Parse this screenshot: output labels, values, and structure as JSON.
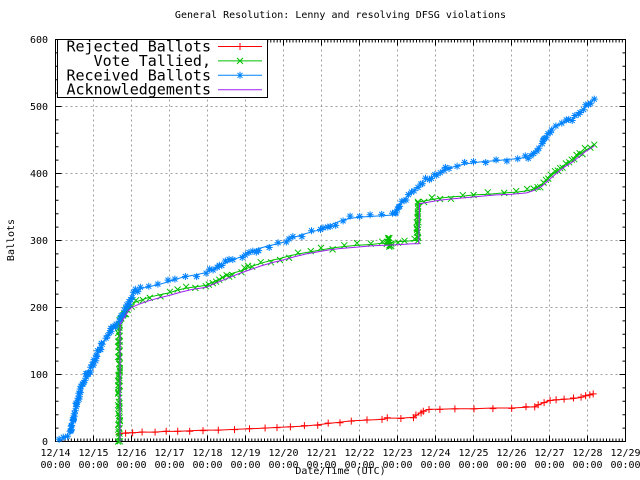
{
  "chart_data": {
    "type": "line",
    "title": "General Resolution: Lenny and resolving DFSG violations",
    "xlabel": "Date/Time (UTC)",
    "ylabel": "Ballots",
    "ylim": [
      0,
      600
    ],
    "y_ticks": [
      0,
      100,
      200,
      300,
      400,
      500,
      600
    ],
    "x_ticks": [
      {
        "date": "12/14",
        "time": "00:00"
      },
      {
        "date": "12/15",
        "time": "00:00"
      },
      {
        "date": "12/16",
        "time": "00:00"
      },
      {
        "date": "12/17",
        "time": "00:00"
      },
      {
        "date": "12/18",
        "time": "00:00"
      },
      {
        "date": "12/19",
        "time": "00:00"
      },
      {
        "date": "12/20",
        "time": "00:00"
      },
      {
        "date": "12/21",
        "time": "00:00"
      },
      {
        "date": "12/22",
        "time": "00:00"
      },
      {
        "date": "12/23",
        "time": "00:00"
      },
      {
        "date": "12/24",
        "time": "00:00"
      },
      {
        "date": "12/25",
        "time": "00:00"
      },
      {
        "date": "12/26",
        "time": "00:00"
      },
      {
        "date": "12/27",
        "time": "00:00"
      },
      {
        "date": "12/28",
        "time": "00:00"
      },
      {
        "date": "12/29",
        "time": "00:00"
      }
    ],
    "grid": true,
    "grid_color": "#a0a0a0",
    "legend_position": "top-left",
    "x_unit": "days_since_12_14_00_00",
    "series": [
      {
        "name": "Rejected Ballots",
        "color": "#ff0000",
        "marker": "plus",
        "points": [
          [
            1.7,
            12
          ],
          [
            1.85,
            13
          ],
          [
            2.05,
            13
          ],
          [
            2.3,
            14
          ],
          [
            2.6,
            14
          ],
          [
            2.9,
            15
          ],
          [
            3.2,
            15
          ],
          [
            3.55,
            16
          ],
          [
            3.9,
            17
          ],
          [
            4.3,
            17
          ],
          [
            4.7,
            18
          ],
          [
            5.1,
            19
          ],
          [
            5.5,
            20
          ],
          [
            5.85,
            21
          ],
          [
            6.2,
            22
          ],
          [
            6.55,
            23
          ],
          [
            6.9,
            25
          ],
          [
            7.2,
            27
          ],
          [
            7.5,
            29
          ],
          [
            7.8,
            31
          ],
          [
            8.2,
            32
          ],
          [
            8.6,
            33
          ],
          [
            8.75,
            35
          ],
          [
            9.1,
            35
          ],
          [
            9.4,
            36
          ],
          [
            9.5,
            39
          ],
          [
            9.6,
            43
          ],
          [
            9.7,
            46
          ],
          [
            9.85,
            48
          ],
          [
            10.1,
            48
          ],
          [
            10.5,
            49
          ],
          [
            11.0,
            49
          ],
          [
            11.5,
            50
          ],
          [
            12.0,
            50
          ],
          [
            12.4,
            51
          ],
          [
            12.6,
            52
          ],
          [
            12.72,
            55
          ],
          [
            12.85,
            58
          ],
          [
            13.0,
            61
          ],
          [
            13.15,
            62
          ],
          [
            13.4,
            63
          ],
          [
            13.65,
            64
          ],
          [
            13.85,
            66
          ],
          [
            13.95,
            68
          ],
          [
            14.05,
            70
          ],
          [
            14.15,
            71
          ]
        ]
      },
      {
        "name": "Vote Tallied,",
        "color": "#00c000",
        "marker": "cross",
        "points": [
          [
            1.67,
            0
          ],
          [
            1.67,
            178
          ],
          [
            1.74,
            184
          ],
          [
            1.82,
            191
          ],
          [
            1.9,
            198
          ],
          [
            2.0,
            204
          ],
          [
            2.1,
            208
          ],
          [
            2.3,
            212
          ],
          [
            2.5,
            216
          ],
          [
            2.75,
            219
          ],
          [
            3.0,
            222
          ],
          [
            3.2,
            226
          ],
          [
            3.45,
            229
          ],
          [
            3.7,
            231
          ],
          [
            3.95,
            233
          ],
          [
            4.15,
            238
          ],
          [
            4.4,
            245
          ],
          [
            4.65,
            251
          ],
          [
            4.9,
            255
          ],
          [
            5.15,
            261
          ],
          [
            5.4,
            266
          ],
          [
            5.65,
            270
          ],
          [
            5.9,
            273
          ],
          [
            6.15,
            277
          ],
          [
            6.4,
            280
          ],
          [
            6.7,
            283
          ],
          [
            7.0,
            286
          ],
          [
            7.3,
            289
          ],
          [
            7.6,
            291
          ],
          [
            7.95,
            293
          ],
          [
            8.3,
            294
          ],
          [
            8.6,
            296
          ],
          [
            8.72,
            295
          ],
          [
            8.76,
            304
          ],
          [
            8.8,
            290
          ],
          [
            8.84,
            297
          ],
          [
            9.0,
            298
          ],
          [
            9.2,
            299
          ],
          [
            9.45,
            300
          ],
          [
            9.52,
            300
          ],
          [
            9.54,
            357
          ],
          [
            9.7,
            359
          ],
          [
            9.9,
            361
          ],
          [
            10.1,
            363
          ],
          [
            10.4,
            365
          ],
          [
            10.7,
            366
          ],
          [
            11.0,
            368
          ],
          [
            11.4,
            369
          ],
          [
            11.8,
            371
          ],
          [
            12.1,
            372
          ],
          [
            12.4,
            374
          ],
          [
            12.6,
            377
          ],
          [
            12.75,
            382
          ],
          [
            12.9,
            389
          ],
          [
            13.05,
            397
          ],
          [
            13.2,
            404
          ],
          [
            13.35,
            411
          ],
          [
            13.5,
            417
          ],
          [
            13.65,
            423
          ],
          [
            13.8,
            429
          ],
          [
            13.95,
            435
          ],
          [
            14.08,
            439
          ],
          [
            14.18,
            443
          ]
        ]
      },
      {
        "name": "Received Ballots",
        "color": "#0082ff",
        "marker": "star",
        "points": [
          [
            0.08,
            0
          ],
          [
            0.2,
            4
          ],
          [
            0.32,
            7
          ],
          [
            0.38,
            12
          ],
          [
            0.45,
            28
          ],
          [
            0.52,
            46
          ],
          [
            0.6,
            66
          ],
          [
            0.7,
            84
          ],
          [
            0.8,
            96
          ],
          [
            0.9,
            106
          ],
          [
            1.0,
            118
          ],
          [
            1.12,
            132
          ],
          [
            1.25,
            147
          ],
          [
            1.38,
            158
          ],
          [
            1.5,
            169
          ],
          [
            1.62,
            176
          ],
          [
            1.72,
            184
          ],
          [
            1.82,
            194
          ],
          [
            1.92,
            207
          ],
          [
            2.0,
            217
          ],
          [
            2.1,
            224
          ],
          [
            2.25,
            228
          ],
          [
            2.45,
            231
          ],
          [
            2.7,
            234
          ],
          [
            2.95,
            238
          ],
          [
            3.15,
            242
          ],
          [
            3.4,
            246
          ],
          [
            3.7,
            249
          ],
          [
            3.95,
            252
          ],
          [
            4.15,
            257
          ],
          [
            4.4,
            264
          ],
          [
            4.65,
            271
          ],
          [
            4.9,
            276
          ],
          [
            5.1,
            281
          ],
          [
            5.35,
            288
          ],
          [
            5.6,
            292
          ],
          [
            5.85,
            295
          ],
          [
            6.05,
            298
          ],
          [
            6.25,
            304
          ],
          [
            6.5,
            309
          ],
          [
            6.75,
            313
          ],
          [
            6.95,
            316
          ],
          [
            7.15,
            321
          ],
          [
            7.35,
            326
          ],
          [
            7.55,
            330
          ],
          [
            7.75,
            333
          ],
          [
            8.0,
            335
          ],
          [
            8.3,
            336
          ],
          [
            8.6,
            337
          ],
          [
            8.85,
            338
          ],
          [
            8.95,
            342
          ],
          [
            9.05,
            352
          ],
          [
            9.15,
            360
          ],
          [
            9.3,
            368
          ],
          [
            9.45,
            376
          ],
          [
            9.6,
            383
          ],
          [
            9.75,
            390
          ],
          [
            9.9,
            395
          ],
          [
            10.05,
            399
          ],
          [
            10.2,
            404
          ],
          [
            10.35,
            408
          ],
          [
            10.55,
            411
          ],
          [
            10.75,
            414
          ],
          [
            11.0,
            416
          ],
          [
            11.3,
            418
          ],
          [
            11.6,
            419
          ],
          [
            11.9,
            421
          ],
          [
            12.15,
            422
          ],
          [
            12.35,
            424
          ],
          [
            12.5,
            428
          ],
          [
            12.65,
            435
          ],
          [
            12.8,
            445
          ],
          [
            12.95,
            458
          ],
          [
            13.05,
            466
          ],
          [
            13.15,
            471
          ],
          [
            13.3,
            474
          ],
          [
            13.45,
            477
          ],
          [
            13.6,
            481
          ],
          [
            13.75,
            488
          ],
          [
            13.9,
            497
          ],
          [
            14.0,
            504
          ],
          [
            14.1,
            508
          ],
          [
            14.18,
            511
          ]
        ]
      },
      {
        "name": "Acknowledgements",
        "color": "#a020f0",
        "marker": "none",
        "points": [
          [
            1.7,
            0
          ],
          [
            1.7,
            175
          ],
          [
            1.8,
            184
          ],
          [
            1.9,
            194
          ],
          [
            2.0,
            200
          ],
          [
            2.2,
            205
          ],
          [
            2.45,
            210
          ],
          [
            2.7,
            214
          ],
          [
            3.0,
            218
          ],
          [
            3.3,
            223
          ],
          [
            3.6,
            227
          ],
          [
            3.95,
            230
          ],
          [
            4.2,
            236
          ],
          [
            4.5,
            243
          ],
          [
            4.8,
            250
          ],
          [
            5.1,
            256
          ],
          [
            5.4,
            262
          ],
          [
            5.7,
            267
          ],
          [
            6.0,
            271
          ],
          [
            6.3,
            276
          ],
          [
            6.6,
            280
          ],
          [
            6.9,
            283
          ],
          [
            7.2,
            286
          ],
          [
            7.5,
            288
          ],
          [
            7.9,
            290
          ],
          [
            8.3,
            292
          ],
          [
            8.7,
            293
          ],
          [
            9.1,
            294
          ],
          [
            9.4,
            295
          ],
          [
            9.56,
            295
          ],
          [
            9.58,
            355
          ],
          [
            9.8,
            357
          ],
          [
            10.1,
            360
          ],
          [
            10.4,
            362
          ],
          [
            10.8,
            364
          ],
          [
            11.2,
            366
          ],
          [
            11.6,
            368
          ],
          [
            12.0,
            369
          ],
          [
            12.4,
            371
          ],
          [
            12.6,
            375
          ],
          [
            12.8,
            381
          ],
          [
            13.0,
            391
          ],
          [
            13.2,
            401
          ],
          [
            13.4,
            410
          ],
          [
            13.6,
            417
          ],
          [
            13.8,
            426
          ],
          [
            13.95,
            433
          ],
          [
            14.1,
            438
          ],
          [
            14.18,
            441
          ]
        ]
      }
    ]
  }
}
